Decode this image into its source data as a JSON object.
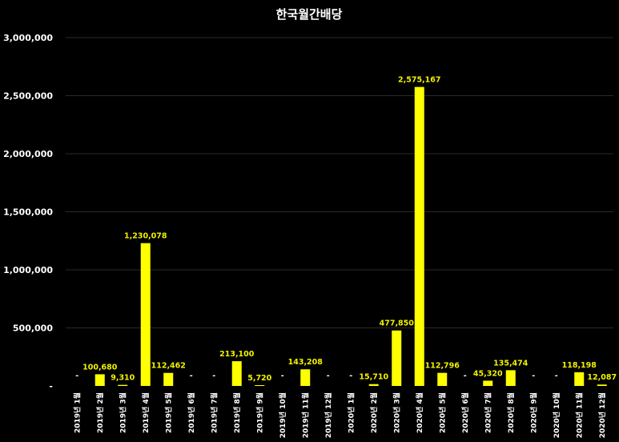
{
  "chart_data": {
    "type": "bar",
    "title": "한국월간배당",
    "xlabel": "",
    "ylabel": "",
    "ylim": [
      0,
      3000000
    ],
    "yticks": [
      0,
      500000,
      1000000,
      1500000,
      2000000,
      2500000,
      3000000
    ],
    "ytick_labels": [
      "-",
      "500,000",
      "1,000,000",
      "1,500,000",
      "2,000,000",
      "2,500,000",
      "3,000,000"
    ],
    "grid": true,
    "legend": "none",
    "bar_color": "#ffff00",
    "label_color": "#f2f200",
    "background": "#000000",
    "categories": [
      "2019년 1월",
      "2019년 2월",
      "2019년 3월",
      "2019년 4월",
      "2019년 5월",
      "2019년 6월",
      "2019년 7월",
      "2019년 8월",
      "2019년 9월",
      "2019년 10월",
      "2019년 11월",
      "2019년 12월",
      "2020년 1월",
      "2020년 2월",
      "2020년 3월",
      "2020년 4월",
      "2020년 5월",
      "2020년 6월",
      "2020년 7월",
      "2020년 8월",
      "2020년 9월",
      "2020년 10월",
      "2020년 11월",
      "2020년 12월"
    ],
    "values": [
      0,
      100680,
      9310,
      1230078,
      112462,
      0,
      0,
      213100,
      5720,
      0,
      143208,
      0,
      0,
      15710,
      477850,
      2575167,
      112796,
      0,
      45320,
      135474,
      0,
      0,
      118198,
      12087
    ],
    "data_labels": [
      "-",
      "100,680",
      "9,310",
      "1,230,078",
      "112,462",
      "-",
      "-",
      "213,100",
      "5,720",
      "-",
      "143,208",
      "-",
      "-",
      "15,710",
      "477,850",
      "2,575,167",
      "112,796",
      "-",
      "45,320",
      "135,474",
      "-",
      "-",
      "118,198",
      "12,087"
    ]
  }
}
